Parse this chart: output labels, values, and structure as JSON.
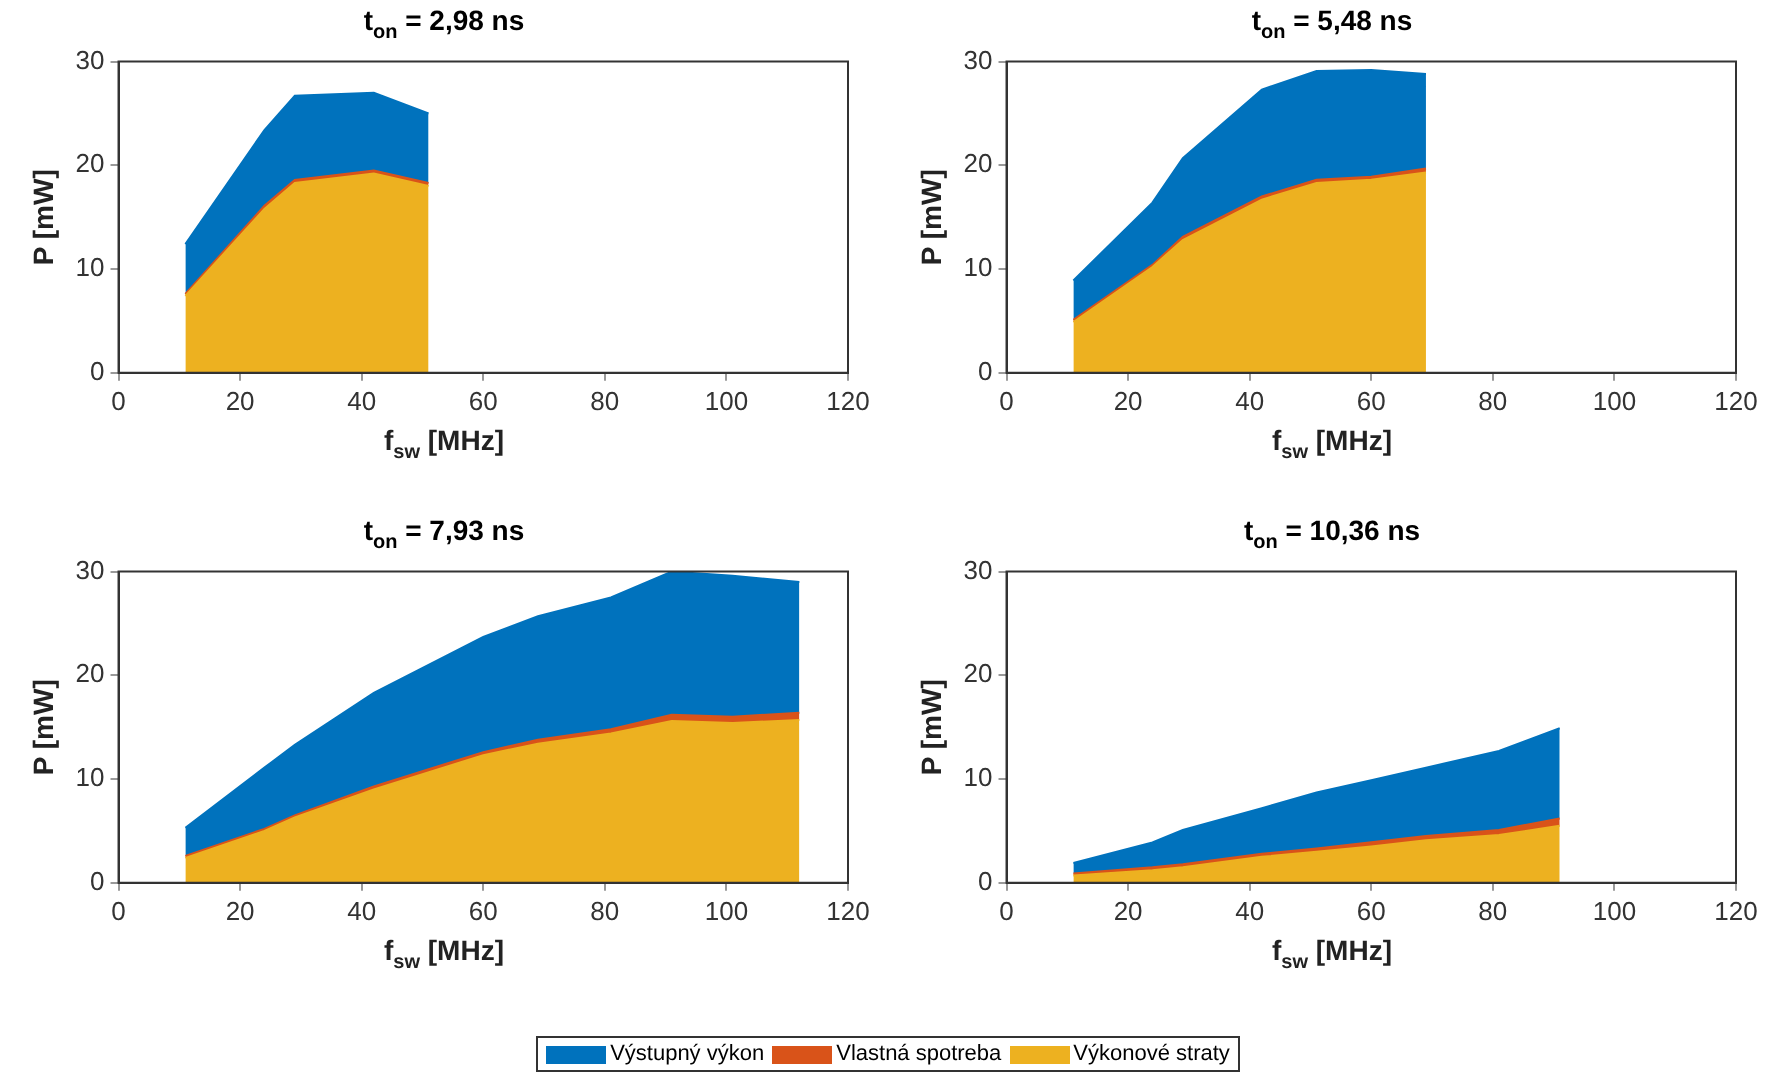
{
  "chart_data": [
    {
      "type": "area",
      "stacked": true,
      "title": "t$_{on}$ = 2,98 ns",
      "xlabel": "f$_{sw}$ [MHz]",
      "ylabel": "P [mW]",
      "legend": "bottom",
      "x": [
        11,
        24,
        29,
        42,
        51
      ],
      "xlim": [
        0,
        120
      ],
      "xticks": [
        0,
        20,
        40,
        60,
        80,
        100,
        120
      ],
      "ylim": [
        0,
        30
      ],
      "yticks": [
        0,
        10,
        20,
        30
      ],
      "grid": false,
      "series": [
        {
          "name": "Výkonové straty",
          "color": "#edb120",
          "values": [
            7.4,
            15.8,
            18.3,
            19.2,
            18.0
          ]
        },
        {
          "name": "Vlastná spotreba",
          "color": "#d95319",
          "values": [
            0.2,
            0.3,
            0.3,
            0.3,
            0.3
          ]
        },
        {
          "name": "Výstupný výkon",
          "color": "#0072bd",
          "values": [
            4.8,
            7.3,
            8.1,
            7.5,
            6.7
          ]
        }
      ]
    },
    {
      "type": "area",
      "stacked": true,
      "title": "t$_{on}$ = 5,48 ns",
      "xlabel": "f$_{sw}$ [MHz]",
      "ylabel": "P [mW]",
      "x": [
        11,
        24,
        29,
        42,
        51,
        60,
        69
      ],
      "xlim": [
        0,
        120
      ],
      "xticks": [
        0,
        20,
        40,
        60,
        80,
        100,
        120
      ],
      "ylim": [
        0,
        30
      ],
      "yticks": [
        0,
        10,
        20,
        30
      ],
      "grid": false,
      "series": [
        {
          "color": "#edb120",
          "values": [
            4.9,
            10.2,
            12.8,
            16.7,
            18.3,
            18.6,
            19.3
          ]
        },
        {
          "color": "#d95319",
          "values": [
            0.2,
            0.2,
            0.3,
            0.3,
            0.3,
            0.3,
            0.4
          ]
        },
        {
          "color": "#0072bd",
          "values": [
            3.8,
            6.0,
            7.6,
            10.3,
            10.5,
            10.3,
            9.1
          ]
        }
      ]
    },
    {
      "type": "area",
      "stacked": true,
      "title": "t$_{on}$ = 7,93 ns",
      "xlabel": "f$_{sw}$ [MHz]",
      "ylabel": "P [mW]",
      "x": [
        11,
        24,
        29,
        42,
        60,
        69,
        81,
        91,
        101,
        112
      ],
      "xlim": [
        0,
        120
      ],
      "xticks": [
        0,
        20,
        40,
        60,
        80,
        100,
        120
      ],
      "ylim": [
        0,
        30
      ],
      "yticks": [
        0,
        10,
        20,
        30
      ],
      "grid": false,
      "series": [
        {
          "color": "#edb120",
          "values": [
            2.4,
            5.0,
            6.3,
            9.0,
            12.3,
            13.4,
            14.4,
            15.6,
            15.4,
            15.7
          ]
        },
        {
          "color": "#d95319",
          "values": [
            0.2,
            0.2,
            0.2,
            0.3,
            0.3,
            0.4,
            0.4,
            0.6,
            0.6,
            0.7
          ]
        },
        {
          "color": "#0072bd",
          "values": [
            2.7,
            5.9,
            6.8,
            9.0,
            11.1,
            11.9,
            12.7,
            13.8,
            13.6,
            12.6
          ]
        }
      ]
    },
    {
      "type": "area",
      "stacked": true,
      "title": "t$_{on}$ = 10,36 ns",
      "xlabel": "f$_{sw}$ [MHz]",
      "ylabel": "P [mW]",
      "x": [
        11,
        24,
        29,
        42,
        51,
        60,
        69,
        81,
        91
      ],
      "xlim": [
        0,
        120
      ],
      "xticks": [
        0,
        20,
        40,
        60,
        80,
        100,
        120
      ],
      "ylim": [
        0,
        30
      ],
      "yticks": [
        0,
        10,
        20,
        30
      ],
      "grid": false,
      "series": [
        {
          "color": "#edb120",
          "values": [
            0.7,
            1.2,
            1.5,
            2.5,
            3.0,
            3.5,
            4.1,
            4.6,
            5.5
          ]
        },
        {
          "color": "#d95319",
          "values": [
            0.2,
            0.3,
            0.3,
            0.3,
            0.3,
            0.4,
            0.4,
            0.5,
            0.7
          ]
        },
        {
          "color": "#0072bd",
          "values": [
            1.0,
            2.4,
            3.3,
            4.4,
            5.4,
            6.0,
            6.6,
            7.6,
            8.7
          ]
        }
      ]
    }
  ]
}
